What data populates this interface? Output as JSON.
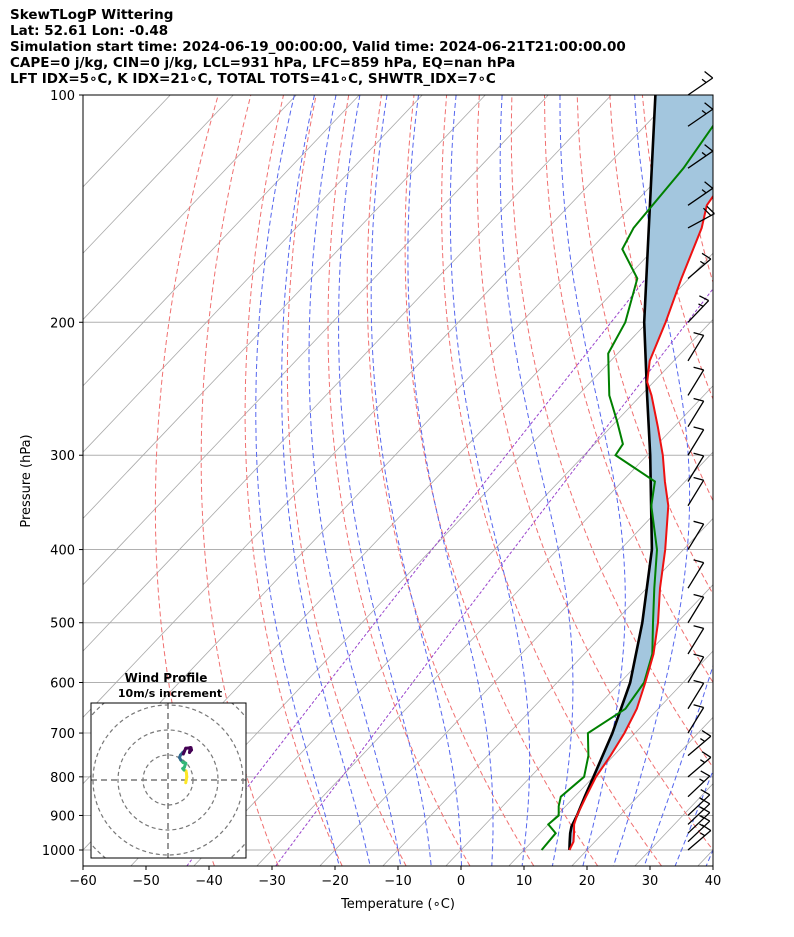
{
  "header": {
    "line1": "SkewTLogP Wittering",
    "line2": "Lat: 52.61   Lon: -0.48",
    "line3": "Simulation start time: 2024-06-19_00:00:00, Valid time: 2024-06-21T21:00:00.00",
    "line4": "CAPE=0 j/kg, CIN=0 j/kg, LCL=931 hPa, LFC=859 hPa, EQ=nan hPa",
    "line5": "LFT IDX=5∘C, K IDX=21∘C, TOTAL TOTS=41∘C, SHWTR_IDX=7∘C"
  },
  "chart_data": [
    {
      "type": "line",
      "subtype": "skew-T log-p",
      "xlabel": "Temperature (∘C)",
      "ylabel": "Pressure (hPa)",
      "xlim": [
        -60,
        40
      ],
      "ylim": [
        1050,
        100
      ],
      "y_scale": "log",
      "x_ticks": [
        "−60",
        "−50",
        "−40",
        "−30",
        "−20",
        "−10",
        "0",
        "10",
        "20",
        "30",
        "40"
      ],
      "y_ticks": [
        "100",
        "200",
        "300",
        "400",
        "500",
        "600",
        "700",
        "800",
        "900",
        "1000"
      ],
      "grid": true,
      "series": [
        {
          "color": "#ee1111",
          "p": [
            1000,
            975,
            950,
            925,
            900,
            850,
            800,
            750,
            700,
            650,
            600,
            550,
            500,
            450,
            400,
            350,
            325,
            300,
            275,
            250,
            240,
            225,
            200,
            175,
            150,
            140,
            125,
            100
          ],
          "t": [
            17.2,
            16.6,
            15.4,
            14.1,
            13.2,
            11.8,
            10.4,
            9.5,
            8.3,
            6.6,
            4.0,
            1.0,
            -3.0,
            -7.9,
            -12.9,
            -19.0,
            -23.2,
            -27.5,
            -32.6,
            -38.3,
            -41.0,
            -43.8,
            -47.1,
            -51.2,
            -55.6,
            -58.2,
            -59.7,
            -59.0
          ]
        },
        {
          "color": "#008000",
          "p": [
            1000,
            950,
            925,
            900,
            875,
            850,
            800,
            750,
            700,
            650,
            600,
            550,
            500,
            450,
            400,
            350,
            325,
            300,
            290,
            270,
            250,
            220,
            200,
            175,
            160,
            150,
            125,
            100
          ],
          "t": [
            12.8,
            12.5,
            10.0,
            10.3,
            8.9,
            7.8,
            8.5,
            6.0,
            2.5,
            4.8,
            3.8,
            0.8,
            -3.8,
            -8.8,
            -14.2,
            -21.7,
            -24.8,
            -35.0,
            -35.5,
            -40.0,
            -45.0,
            -51.5,
            -53.5,
            -58.2,
            -65.0,
            -66.4,
            -67.5,
            -70.4
          ]
        },
        {
          "color": "#000000",
          "p": [
            1000,
            975,
            950,
            931,
            900,
            850,
            800,
            700,
            600,
            500,
            400,
            300,
            250,
            200,
            150,
            100
          ],
          "t": [
            17.2,
            16.0,
            14.8,
            14.0,
            13.2,
            11.6,
            10.0,
            6.4,
            1.6,
            -5.5,
            -15.0,
            -29.5,
            -39.0,
            -50.5,
            -64.0,
            -83.0
          ]
        }
      ],
      "shading": {
        "color": "#a3c6de",
        "between": [
          "red temperature profile",
          "black parcel profile"
        ]
      },
      "background_lines": {
        "isotherm_color": "#a9a9a9",
        "dry_adiabat_color": "#f07070",
        "moist_adiabat_color": "#5566ee",
        "mixing_ratio_color": "#9944cc"
      },
      "wind_barbs": {
        "color": "#000000",
        "p": [
          1000,
          975,
          950,
          925,
          900,
          850,
          800,
          750,
          700,
          650,
          600,
          550,
          500,
          450,
          400,
          350,
          325,
          300,
          275,
          250,
          225,
          200,
          175,
          150,
          140,
          125,
          110,
          100
        ],
        "speed_kt": [
          15,
          15,
          15,
          15,
          15,
          15,
          15,
          15,
          10,
          10,
          10,
          10,
          10,
          10,
          10,
          10,
          10,
          10,
          10,
          10,
          10,
          15,
          15,
          20,
          15,
          15,
          15,
          15
        ],
        "dir_deg": [
          230,
          225,
          225,
          225,
          225,
          225,
          230,
          230,
          200,
          200,
          200,
          200,
          200,
          200,
          200,
          200,
          200,
          200,
          200,
          200,
          200,
          220,
          230,
          250,
          240,
          240,
          240,
          240
        ]
      }
    },
    {
      "type": "line",
      "subtype": "hodograph",
      "title": "Wind Profile",
      "subtitle": "10m/s increment",
      "color_scale": [
        "#440154",
        "#31688e",
        "#35b779",
        "#fde725"
      ],
      "u": [
        1.5,
        1.7,
        1.9,
        1.8,
        1.6,
        0.8,
        0.3,
        0.9,
        1.5,
        0.4,
        -0.5,
        -1.0,
        -0.6,
        0.3,
        1.0,
        0.5,
        1.5,
        3.6,
        3.8,
        3.0,
        3.3
      ],
      "v": [
        0.5,
        1.6,
        2.8,
        4.2,
        5.2,
        5.6,
        6.2,
        6.6,
        8.3,
        8.6,
        9.6,
        10.6,
        11.6,
        12.6,
        13.2,
        12.0,
        14.3,
        14.5,
        13.6,
        12.6,
        14.6
      ]
    }
  ]
}
